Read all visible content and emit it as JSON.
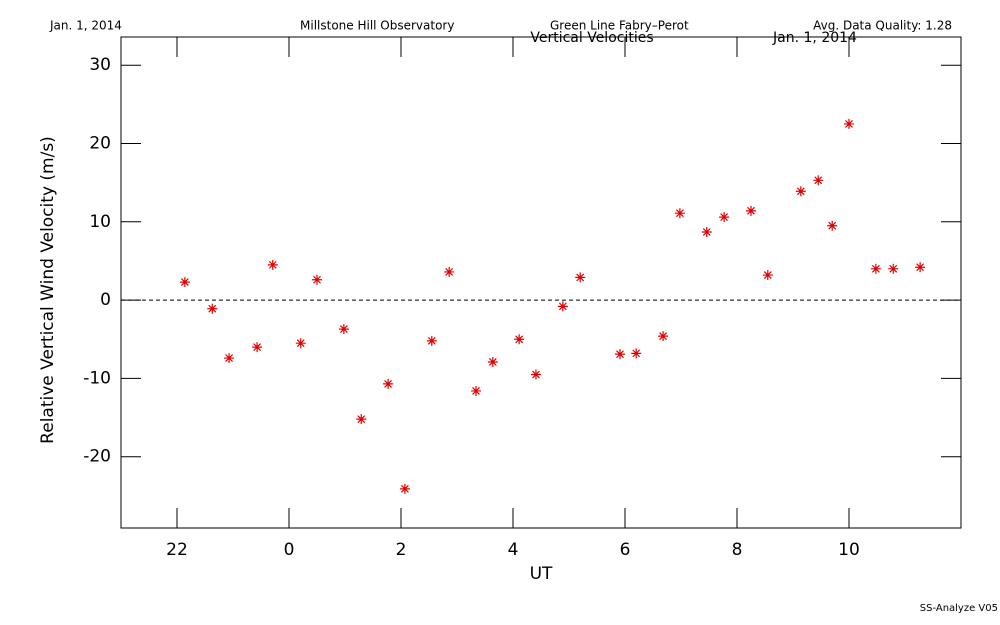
{
  "chart_data": {
    "type": "scatter",
    "header": {
      "date": "Jan. 1, 2014",
      "observatory": "Millstone Hill Observatory",
      "instrument": "Green Line Fabry–Perot",
      "quality": "Avg. Data Quality: 1.28"
    },
    "title": "Vertical Velocities",
    "subtitle": "Jan. 1, 2014",
    "footer": "SS-Analyze V05",
    "xlabel": "UT",
    "ylabel": "Relative Vertical Wind Velocity (m/s)",
    "color": "#e00000",
    "x": [
      22.14,
      22.63,
      22.93,
      23.43,
      23.71,
      24.21,
      24.5,
      24.98,
      25.29,
      25.77,
      26.07,
      26.55,
      26.86,
      27.34,
      27.64,
      28.11,
      28.41,
      28.89,
      29.2,
      29.91,
      30.2,
      30.68,
      30.98,
      31.46,
      31.77,
      32.25,
      32.55,
      33.14,
      33.45,
      33.7,
      34.0,
      34.48,
      34.79,
      35.27
    ],
    "values": [
      2.3,
      -1.1,
      -7.4,
      -6.0,
      4.5,
      -5.5,
      2.6,
      -3.7,
      -15.2,
      -10.7,
      -24.1,
      -5.2,
      3.6,
      -11.6,
      -7.9,
      -5.0,
      -9.5,
      -0.8,
      2.9,
      -6.9,
      -6.8,
      -4.6,
      11.1,
      8.7,
      10.6,
      11.4,
      3.2,
      13.9,
      15.3,
      9.5,
      22.5,
      4.0,
      4.0,
      4.2
    ],
    "xlim": [
      21,
      36
    ],
    "xticks": [
      22,
      {
        "value": 24,
        "label": "0"
      },
      {
        "value": 26,
        "label": "2"
      },
      {
        "value": 28,
        "label": "4"
      },
      {
        "value": 30,
        "label": "6"
      },
      {
        "value": 32,
        "label": "8"
      },
      {
        "value": 34,
        "label": "10"
      }
    ],
    "ylim": [
      -29.1,
      33.6
    ],
    "yticks": [
      -20,
      -10,
      0,
      10,
      20,
      30
    ]
  }
}
